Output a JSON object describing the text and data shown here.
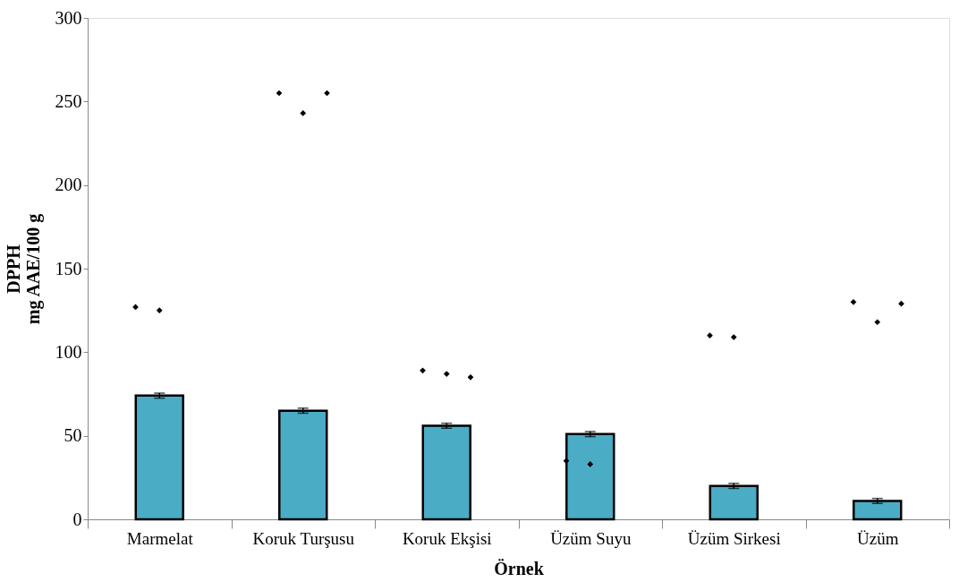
{
  "chart_data": {
    "type": "bar",
    "xlabel": "Örnek",
    "ylabel": "DPPH\nmg AAE/100 g",
    "categories": [
      "Marmelat",
      "Koruk Turşusu",
      "Koruk Ekşisi",
      "Üzüm Suyu",
      "Üzüm Sirkesi",
      "Üzüm"
    ],
    "ylim": [
      0,
      300
    ],
    "yticks": [
      0,
      50,
      100,
      150,
      200,
      250,
      300
    ],
    "grid": false,
    "series": [
      {
        "color": "#4bacc6",
        "values": [
          74,
          65,
          56,
          51,
          20,
          11
        ],
        "errors": [
          1.5,
          1.5,
          1.5,
          1.5,
          1.5,
          1.5
        ]
      },
      {
        "type": "scatter",
        "color": "#000000",
        "marker": "diamond",
        "x": [
          "Marmelat",
          "Marmelat",
          "Koruk Turşusu",
          "Koruk Turşusu",
          "Koruk Turşusu",
          "Koruk Ekşisi",
          "Koruk Ekşisi",
          "Koruk Ekşisi",
          "Üzüm Suyu",
          "Üzüm Suyu",
          "Üzüm Sirkesi",
          "Üzüm Sirkesi",
          "Üzüm",
          "Üzüm",
          "Üzüm"
        ],
        "values": [
          127,
          125,
          255,
          243,
          255,
          89,
          87,
          85,
          35,
          33,
          110,
          109,
          130,
          118,
          129
        ]
      }
    ]
  }
}
